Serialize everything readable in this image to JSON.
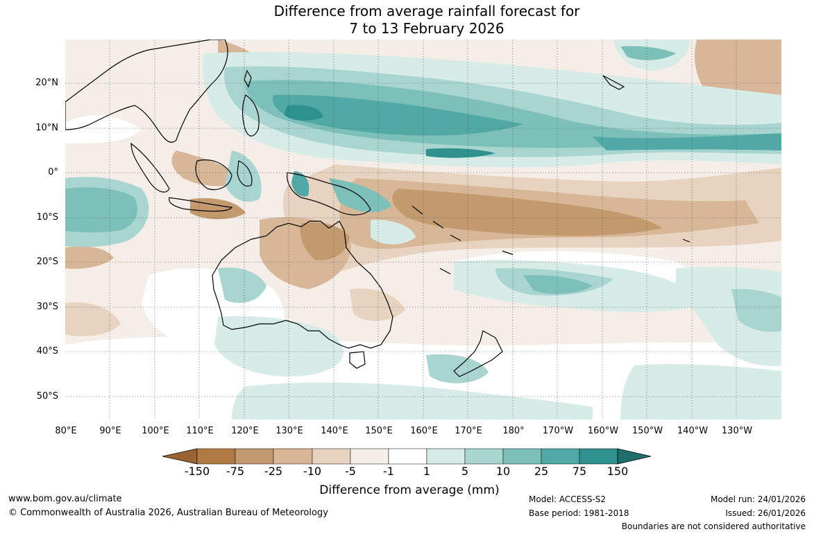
{
  "title": {
    "line1": "Difference from average rainfall forecast for",
    "line2": "7 to 13 February 2026"
  },
  "axes": {
    "lat_labels": [
      "20°N",
      "10°N",
      "0°",
      "10°S",
      "20°S",
      "30°S",
      "40°S",
      "50°S"
    ],
    "lon_labels": [
      "80°E",
      "90°E",
      "100°E",
      "110°E",
      "120°E",
      "130°E",
      "140°E",
      "150°E",
      "160°E",
      "170°E",
      "180°",
      "170°W",
      "160°W",
      "150°W",
      "140°W",
      "130°W"
    ]
  },
  "colorbar": {
    "label": "Difference from average (mm)",
    "ticks": [
      "-150",
      "-75",
      "-25",
      "-10",
      "-5",
      "-1",
      "1",
      "5",
      "10",
      "25",
      "75",
      "150"
    ],
    "colors": [
      "#9b6331",
      "#b07a45",
      "#c39a6e",
      "#d7b797",
      "#e7d3bf",
      "#f5ede7",
      "#ffffff",
      "#d7ebe7",
      "#a9d5d0",
      "#7dbfb9",
      "#50a9a4",
      "#2d918e",
      "#1f6f6c"
    ]
  },
  "footer": {
    "url": "www.bom.gov.au/climate",
    "copyright": "© Commonwealth of Australia 2026, Australian Bureau of Meteorology",
    "model": "Model: ACCESS-S2",
    "base_period": "Base period: 1981-2018",
    "model_run": "Model run: 24/01/2026",
    "issued": "Issued: 26/01/2026",
    "disclaimer": "Boundaries are not considered authoritative"
  }
}
